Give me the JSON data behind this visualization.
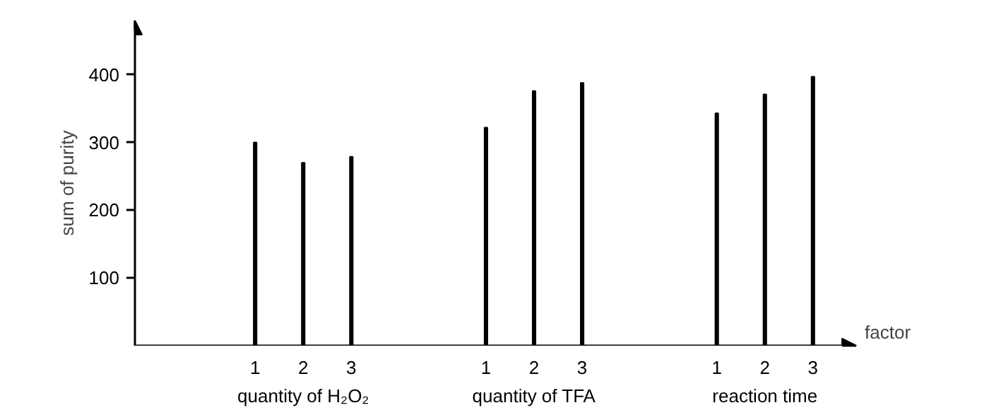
{
  "chart_data": {
    "type": "bar",
    "xlabel": "factor",
    "ylabel": "sum of purity",
    "categories": [
      "quantity of H₂O₂",
      "quantity of TFA",
      "reaction time"
    ],
    "series": [
      {
        "name": "1",
        "color": "#000000",
        "values": [
          300,
          322,
          343
        ]
      },
      {
        "name": "2",
        "color": "#000000",
        "values": [
          270,
          376,
          371
        ]
      },
      {
        "name": "3",
        "color": "#000000",
        "values": [
          279,
          388,
          397
        ]
      }
    ],
    "ylim": [
      0,
      480
    ],
    "yticks": [
      100,
      200,
      300,
      400
    ],
    "grid": false
  }
}
